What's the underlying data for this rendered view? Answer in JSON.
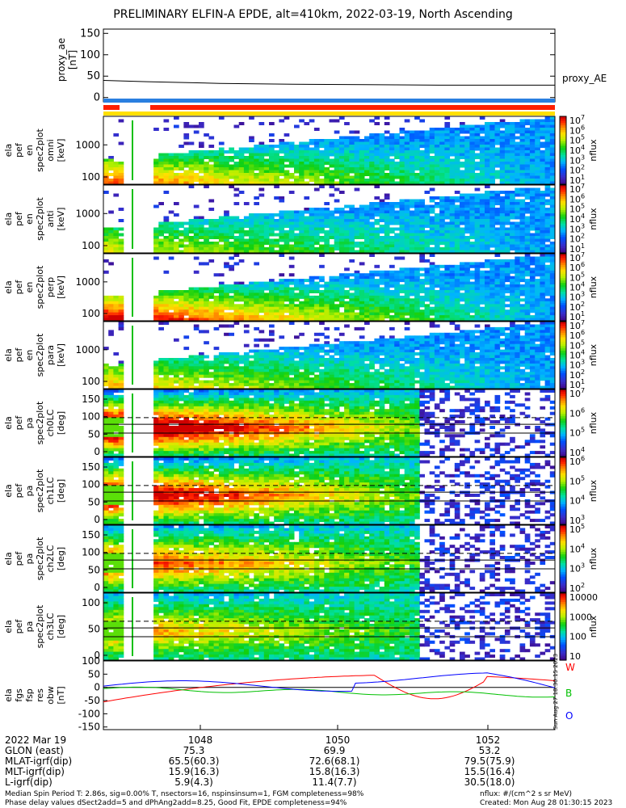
{
  "title": "PRELIMINARY ELFIN-A EPDE, alt=410km, 2022-03-19, North Ascending",
  "chart_data": [
    {
      "type": "line",
      "panel": "proxy_ae",
      "ylabel": "proxy_ae\n[nT]",
      "yticks": [
        "150",
        "100",
        "50",
        "0"
      ],
      "ylim": [
        -10,
        160
      ],
      "series": [
        {
          "name": "proxy_AE",
          "x": [
            1046.4,
            1047.0,
            1048.0,
            1049.0,
            1050.0,
            1051.0,
            1052.0,
            1052.6
          ],
          "values": [
            40,
            37,
            33,
            31,
            30,
            29,
            29,
            29
          ]
        }
      ],
      "legend": [
        "proxy_AE"
      ]
    },
    {
      "type": "heatmap",
      "ylabel": "ela\npef\nen\nspec2plot\nomni\n[keV]",
      "yticks": [
        "1000",
        "100"
      ],
      "colorbar": {
        "label": "nflux",
        "ticks": [
          "10^7",
          "10^6",
          "10^5",
          "10^4",
          "10^3",
          "10^2",
          "10^1"
        ]
      }
    },
    {
      "type": "heatmap",
      "ylabel": "ela\npef\nen\nspec2plot\nanti\n[keV]",
      "yticks": [
        "1000",
        "100"
      ],
      "colorbar": {
        "label": "nflux",
        "ticks": [
          "10^7",
          "10^6",
          "10^5",
          "10^4",
          "10^3",
          "10^2",
          "10^1"
        ]
      }
    },
    {
      "type": "heatmap",
      "ylabel": "ela\npef\nen\nspec2plot\nperp\n[keV]",
      "yticks": [
        "1000",
        "100"
      ],
      "colorbar": {
        "label": "nflux",
        "ticks": [
          "10^7",
          "10^6",
          "10^5",
          "10^4",
          "10^3",
          "10^2",
          "10^1"
        ]
      }
    },
    {
      "type": "heatmap",
      "ylabel": "ela\npef\nen\nspec2plot\npara\n[keV]",
      "yticks": [
        "1000",
        "100"
      ],
      "colorbar": {
        "label": "nflux",
        "ticks": [
          "10^7",
          "10^6",
          "10^5",
          "10^4",
          "10^3",
          "10^2",
          "10^1"
        ]
      }
    },
    {
      "type": "heatmap",
      "ylabel": "ela\npef\npa\nspec2plot\nch0LC\n[deg]",
      "yticks": [
        "150",
        "100",
        "50",
        "0"
      ],
      "colorbar": {
        "label": "nflux",
        "ticks": [
          "10^7",
          "10^6",
          "10^5",
          "10^4"
        ]
      }
    },
    {
      "type": "heatmap",
      "ylabel": "ela\npef\npa\nspec2plot\nch1LC\n[deg]",
      "yticks": [
        "150",
        "100",
        "50",
        "0"
      ],
      "colorbar": {
        "label": "nflux",
        "ticks": [
          "10^6",
          "10^5",
          "10^4",
          "10^3"
        ]
      }
    },
    {
      "type": "heatmap",
      "ylabel": "ela\npef\npa\nspec2plot\nch2LC\n[deg]",
      "yticks": [
        "150",
        "100",
        "50",
        "0"
      ],
      "colorbar": {
        "label": "nflux",
        "ticks": [
          "10^5",
          "10^4",
          "10^3",
          "10^2"
        ]
      }
    },
    {
      "type": "heatmap",
      "ylabel": "ela\npef\npa\nspec2plot\nch3LC\n[deg]",
      "yticks": [
        "100",
        "50",
        "0"
      ],
      "colorbar": {
        "label": "nflux",
        "ticks": [
          "10000",
          "1000",
          "100",
          "10"
        ]
      }
    },
    {
      "type": "line",
      "panel": "fgs",
      "ylabel": "ela\nfgs\nfsp\nres\nobw\n[nT]",
      "yticks": [
        "100",
        "50",
        "0",
        "-50",
        "-100",
        "-150"
      ],
      "ylim": [
        -160,
        100
      ],
      "series": [
        {
          "name": "W",
          "color": "#ff0000"
        },
        {
          "name": "B",
          "color": "#00c000"
        },
        {
          "name": "O",
          "color": "#0000ff"
        }
      ]
    }
  ],
  "side_stamp": "Sun Aug 27 18:30:15 2023",
  "axis": {
    "date": "2022 Mar 19",
    "times": [
      "1048",
      "1050",
      "1052"
    ],
    "rows": [
      {
        "label": "GLON (east)",
        "values": [
          "75.3",
          "69.9",
          "53.2"
        ]
      },
      {
        "label": "MLAT-igrf(dip)",
        "values": [
          "65.5(60.3)",
          "72.6(68.1)",
          "79.5(75.9)"
        ]
      },
      {
        "label": "MLT-igrf(dip)",
        "values": [
          "15.9(16.3)",
          "15.8(16.3)",
          "15.5(16.4)"
        ]
      },
      {
        "label": "L-igrf(dip)",
        "values": [
          "5.9(4.3)",
          "11.4(7.7)",
          "30.5(18.0)"
        ]
      }
    ]
  },
  "footer": {
    "line1": "Median Spin Period T: 2.86s, sig=0.00% T, nsectors=16, nspinsinsum=1, FGM completeness=98%",
    "line2": "Phase delay values dSect2add=5 and dPhAng2add=8.25, Good Fit, EPDE completeness=94%",
    "units": "nflux: #/(cm^2 s sr MeV)",
    "created": "Created: Mon Aug 28 01:30:15 2023"
  },
  "colors": {
    "frame": "#000000",
    "bar_blue": "#2a7fe0",
    "bar_red": "#ff1e00",
    "bar_yellow": "#ffe000"
  }
}
